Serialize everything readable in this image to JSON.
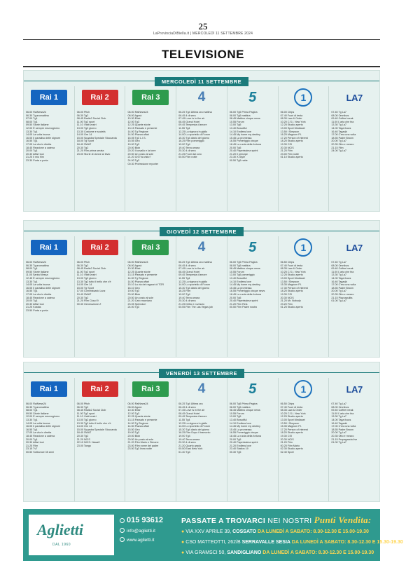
{
  "header": {
    "page_number": "25",
    "masthead": "LaProvinciaDiBiella.it | MERCOLEDÌ 11 SETTEMBRE 2024",
    "section_title": "TELEVISIONE"
  },
  "channel_logos": {
    "rai1": "Rai 1",
    "rai2": "Rai 2",
    "rai3": "Rai 3",
    "rete4": "4",
    "canale5": "5",
    "italia1": "1",
    "la7": "LA7"
  },
  "days": [
    {
      "label": "MERCOLEDÌ 11 SETTEMBRE",
      "channels": [
        {
          "id": "rai1",
          "lines": [
            "06.00 RaiNews24",
            "06.30 Tgunomattina",
            "07.00 Tg1",
            "08.00 Tg1",
            "09.50 Storie italiane",
            "12.00 È sempre mezzogiorno",
            "13.30 Tg1",
            "14.05 La volta buona",
            "16.05 Il paradiso delle signore",
            "16.55 Tg1",
            "17.05 La vita in diretta",
            "18.45 Reazione a catena",
            "20.00 Tg1",
            "20.30 Affari tuoi",
            "21.25 Il mio film",
            "23.30 Porta a porta"
          ]
        },
        {
          "id": "rai2",
          "lines": [
            "06.00 Pitch",
            "06.30 Tg2",
            "08.45 Radio2 Social Club",
            "11.00 Tg2 sport",
            "11.10 I fatti vostri",
            "13.00 Tg2 giorno",
            "13.30 Costume e società",
            "14.00 Ore 14",
            "15.00 Squadra Speciale Stoccarda",
            "18.00 Tg Sport",
            "18.40 SWAT",
            "20.30 Tg2",
            "21.20 Film prima serata",
            "23.00 Storie di donne al bivio"
          ]
        },
        {
          "id": "rai3",
          "lines": [
            "06.00 RaiNews24",
            "08.00 Agorà",
            "10.30 Elisir",
            "12.00 Tg3",
            "12.25 Quante storie",
            "13.15 Passato e presente",
            "14.00 Tg Regione",
            "14.50 Piazza affari",
            "15.05 Tg3 L.I.S.",
            "15.55 Geo",
            "19.00 Tg3",
            "20.00 Blob",
            "20.20 Il cavallo e la torre",
            "20.50 Un posto al sole",
            "21.20 Chi l'ha visto?",
            "24.00 Tg3",
            "00.30 Professione reporter"
          ]
        },
        {
          "id": "rete4",
          "lines": [
            "06.25 Tg4 Ultima ora mattina",
            "06.45 4 di sera",
            "07.45 Love is in the air",
            "08.45 Grand Hotel",
            "09.45 Tempesta d'amore",
            "11.55 Tg4",
            "12.25 La signora in giallo",
            "14.00 Lo sportello di Forum",
            "15.30 Tg4 diario del giorno",
            "16.25 Film pomeriggio",
            "19.00 Tg4",
            "19.40 Terra amara",
            "20.30 4 di sera",
            "21.25 Fuori dal coro",
            "00.50 Film notte"
          ]
        },
        {
          "id": "canale5",
          "lines": [
            "06.00 Tg5 Prima Pagina",
            "08.00 Tg5 mattina",
            "08.45 Mattino cinque news",
            "10.55 Forum",
            "13.00 Tg5",
            "13.40 Beautiful",
            "14.10 Endless love",
            "14.45 My home my destiny",
            "15.45 La promessa",
            "16.55 Pomeriggio cinque",
            "18.45 La ruota della fortuna",
            "20.00 Tg5",
            "20.40 Paperissima sprint",
            "21.20 Il principe",
            "23.30 X-Style",
            "00.50 Tg5 notte"
          ]
        },
        {
          "id": "italia1",
          "lines": [
            "06.00 Chips",
            "07.40 Fuori di testa",
            "08.30 Law & Order",
            "10.20 C.S.I. New York",
            "12.25 Studio aperto",
            "13.00 Sport Mediaset",
            "13.50 I Simpson",
            "16.25 Magnum P.I.",
            "17.20 Person of interest",
            "18.20 Studio aperto",
            "19.30 CSI",
            "20.30 NCIS",
            "21.20 Film",
            "23.00 Film notte",
            "01.10 Studio aperto"
          ]
        },
        {
          "id": "la7",
          "lines": [
            "07.40 Tg La7",
            "08.00 Omnibus",
            "09.40 Coffee break",
            "11.00 L'aria che tira",
            "13.30 Tg La7",
            "14.00 Taga focus",
            "16.40 Tagadà",
            "17.00 C'era una volta",
            "18.55 Padre Brown",
            "20.00 Tg La7",
            "20.35 Otto e mezzo",
            "21.15 Film",
            "24.00 Tg La7"
          ]
        }
      ]
    },
    {
      "label": "GIOVEDÌ 12 SETTEMBRE",
      "channels": [
        {
          "id": "rai1",
          "lines": [
            "06.00 RaiNews24",
            "06.35 Tgunomattina",
            "08.00 Tg1",
            "09.50 Storie italiane",
            "11.05 Santa Messa",
            "12.45 È sempre mezzogiorno",
            "13.30 Tg1",
            "14.05 La volta buona",
            "16.05 Il paradiso delle signore",
            "16.55 Tg1",
            "17.05 La vita in diretta",
            "18.45 Reazione a catena",
            "20.00 Tg1",
            "20.30 Affari tuoi",
            "21.25 Kostas",
            "23.50 Porta a porta"
          ]
        },
        {
          "id": "rai2",
          "lines": [
            "06.00 Pitch",
            "06.30 Tg2",
            "08.45 Radio2 Social Club",
            "11.00 Tg2 sport",
            "11.10 I fatti vostri",
            "13.00 Tg2 giorno",
            "13.30 Tg2 tutto il bello che c'è",
            "14.00 Ore 14",
            "15.00 Tg Sport",
            "17.00 Commissario Lanz",
            "19.40 SWAT",
            "20.30 Tg2",
            "21.20 Film Cloud 9",
            "00.30 Generazione Z"
          ]
        },
        {
          "id": "rai3",
          "lines": [
            "06.00 RaiNews24",
            "08.00 Agorà",
            "10.30 Elisir",
            "12.25 Quante storie",
            "13.15 Passato e presente",
            "14.00 Tg Regione",
            "14.50 Piazza affari",
            "15.10 La via del ragazzi di TGR",
            "16.10 Geo",
            "19.00 Tg3",
            "20.00 Blob",
            "20.50 Un posto al sole",
            "21.20 Caro marziano",
            "23.05 Splendori",
            "24.00 Tg3"
          ]
        },
        {
          "id": "rete4",
          "lines": [
            "06.25 Tg4 Ultima ora mattina",
            "06.45 4 di sera",
            "07.45 Love is in the air",
            "08.45 Grand Hotel",
            "09.45 Tempesta d'amore",
            "11.55 Tg4",
            "12.25 La signora in giallo",
            "14.00 Lo sportello di Forum",
            "15.30 Tg4 diario del giorno",
            "16.25 Film",
            "19.00 Tg4",
            "19.40 Terra amara",
            "20.30 4 di sera",
            "21.25 Dritto e rovescio",
            "00.55 Film The Las Vegas job"
          ]
        },
        {
          "id": "canale5",
          "lines": [
            "06.00 Tg5 Prima Pagina",
            "08.00 Tg5 mattina",
            "08.45 Mattino cinque news",
            "10.55 Forum",
            "13.00 Tg5 pomeriggio",
            "13.40 Beautiful",
            "14.10 Endless love",
            "14.45 My home my destiny",
            "15.45 La promessa",
            "16.55 Pomeriggio cinque news",
            "18.45 La ruota della fortuna",
            "20.00 Tg5",
            "20.40 Paperissima sprint",
            "21.20 Film Reis",
            "00.50 Film Padre nostro"
          ]
        },
        {
          "id": "italia1",
          "lines": [
            "06.50 Chips",
            "07.40 Fuori di testa",
            "08.35 Law & Order",
            "10.25 C.S.I. New York",
            "12.25 Studio aperto",
            "13.00 Sport Mediaset",
            "13.50 I Simpson",
            "15.35 Magnum P.I.",
            "17.30 Person of interest",
            "18.20 Studio aperto",
            "19.30 CSI",
            "20.30 NCIS",
            "21.20 Mr. Nobody",
            "23.20 Film",
            "01.25 Studio aperto"
          ]
        },
        {
          "id": "la7",
          "lines": [
            "07.40 Tg La7",
            "08.00 Omnibus",
            "09.40 Coffee break",
            "11.00 L'aria che tira",
            "13.30 Tg La7",
            "14.00 Taga focus",
            "16.40 Tagadà",
            "17.00 C'era una volta",
            "18.55 Padre Brown",
            "20.00 Tg La7",
            "20.35 Otto e mezzo",
            "21.15 Piazzapulita",
            "01.00 Tg La7"
          ]
        }
      ]
    },
    {
      "label": "VENERDÌ 13 SETTEMBRE",
      "channels": [
        {
          "id": "rai1",
          "lines": [
            "06.00 RaiNews24",
            "06.35 Tgunomattina",
            "08.00 Tg1",
            "09.50 Storie italiane",
            "12.00 È sempre mezzogiorno",
            "13.30 Tg1",
            "14.05 La volta buona",
            "16.05 Il paradiso delle signore",
            "16.55 Tg1",
            "17.05 La vita in diretta",
            "18.45 Reazione a catena",
            "20.00 Tg1",
            "20.30 Affari tuoi",
            "21.25 Film",
            "23.15 Tv7",
            "00.50 Sottovoce 35 anni"
          ]
        },
        {
          "id": "rai2",
          "lines": [
            "06.00 Pitch",
            "06.30 Tg2",
            "08.45 Radio2 Social Club",
            "11.00 Tg2 sport",
            "11.10 I fatti vostri",
            "13.00 Tg2 giorno",
            "13.30 Tg2 tutto il bello che c'è",
            "14.00 Ore 14",
            "15.00 Squadra Speciale Stoccarda",
            "18.40 SWAT",
            "20.30 Tg2",
            "21.20 NCIS",
            "22.10 NCIS: Hawai'i",
            "23.00 Tango"
          ]
        },
        {
          "id": "rai3",
          "lines": [
            "06.00 RaiNews24",
            "08.00 Agorà",
            "10.30 Elisir",
            "12.00 Tg3",
            "12.25 Quante storie",
            "13.15 Passato e presente",
            "14.00 Tg Regione",
            "14.50 Piazza affari",
            "15.50 Geo",
            "19.00 Tg3",
            "20.00 Blob",
            "20.50 Un posto al sole",
            "21.20 Film Mario e Simone",
            "23.00 Film nome del padre",
            "23.50 Tg3 linea notte"
          ]
        },
        {
          "id": "rete4",
          "lines": [
            "06.25 Tg4 Ultima ora",
            "06.45 4 di sera",
            "07.45 Love is in the air",
            "08.45 Grand Hotel",
            "09.45 Tempesta d'amore",
            "11.55 Tg4",
            "12.25 La signora in giallo",
            "14.00 Lo sportello di Forum",
            "15.30 Tg4 diario del giorno",
            "16.25 Film Dopo il tramonto",
            "19.00 Tg4",
            "19.40 Terra amara",
            "20.30 4 di sera",
            "21.20 Quarto grado",
            "00.50 East New York",
            "01.40 Tg4"
          ]
        },
        {
          "id": "canale5",
          "lines": [
            "06.00 Tg5 Prima Pagina",
            "08.00 Tg5 mattina",
            "08.45 Mattino cinque news",
            "10.55 Forum",
            "13.00 Tg5",
            "13.40 Beautiful",
            "14.10 Endless love",
            "14.45 My home my destiny",
            "15.45 La promessa",
            "16.55 Pomeriggio cinque",
            "18.45 La ruota della fortuna",
            "20.00 Tg5",
            "20.40 Paperissima sprint",
            "21.20 Endless love",
            "23.40 Station 19",
            "00.30 Tg5"
          ]
        },
        {
          "id": "italia1",
          "lines": [
            "06.50 Chips",
            "07.40 Fuori di testa",
            "08.35 Law & Order",
            "10.25 C.S.I. New York",
            "12.25 Studio aperto",
            "13.00 Sport Mediaset",
            "13.50 I Simpson",
            "15.35 Magnum P.I.",
            "17.20 Person of interest",
            "18.20 Studio aperto",
            "19.30 CSI",
            "20.30 NCIS",
            "21.20 Film",
            "00.25 Film Mario",
            "02.30 Studio aperto",
            "02.40 Sport"
          ]
        },
        {
          "id": "la7",
          "lines": [
            "07.40 Tg La7",
            "08.00 Omnibus",
            "09.40 Coffee break",
            "11.00 L'aria che tira",
            "13.30 Tg La7",
            "14.00 Taga focus",
            "16.40 Tagadà",
            "17.00 C'era una volta",
            "18.55 Padre Brown",
            "20.00 Tg La7",
            "20.35 Otto e mezzo",
            "21.15 Propaganda live",
            "01.00 Tg La7"
          ]
        }
      ]
    }
  ],
  "ad": {
    "logo": "Aglietti",
    "logo_sub": "DAL 1960",
    "phone": "015 93612",
    "website": "www.aglietti.it",
    "email": "info@aglietti.it",
    "headline_a": "PASSATE A TROVARCI",
    "headline_b": "NEI NOSTRI",
    "headline_script": "Punti Vendita:",
    "stores": [
      {
        "address": "VIA XXV APRILE 39,",
        "town": "COSSATO",
        "hours": "DA LUNEDÌ A SABATO: 8.30-12.30 E 15.00-19.30"
      },
      {
        "address": "CSO MATTEOTTI, 262/B",
        "town": "SERRAVALLE SESIA",
        "hours": "DA LUNEDÌ A SABATO: 8.30-12.30 E 15.30-19.30"
      },
      {
        "address": "VIA GRAMSCI 50,",
        "town": "SANDIGLIANO",
        "hours": "DA LUNEDÌ A SABATO: 8.30-12.30 E 15.00-19.30"
      }
    ]
  }
}
